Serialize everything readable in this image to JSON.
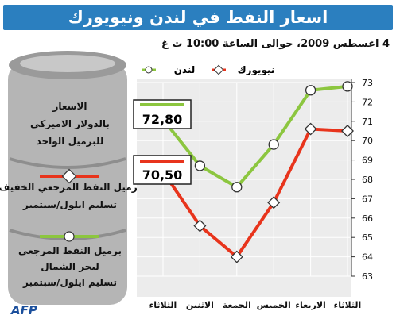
{
  "header": {
    "title": "اسعار النفط في لندن ونيويورك",
    "date_line": "4 اغسطس 2009، حوالى الساعة 10:00 ت غ"
  },
  "legend": {
    "london": "لندن",
    "newyork": "نيويورك"
  },
  "left_panel": {
    "intro": [
      "الاسعار",
      "بالدولار الاميركي",
      "للبرميل الواحد"
    ],
    "red_series_text": [
      "برميل النفط المرجعي الخفيف",
      "تسليم ايلول/سبتمبر"
    ],
    "green_series_text": [
      "برميل النفط المرجعي",
      "لبحر الشمال",
      "تسليم ايلول/سبتمبر"
    ]
  },
  "source": "AFP",
  "colors": {
    "title_bg": "#2b7fbf",
    "green": "#8cc63f",
    "red": "#e8341c",
    "barrel": "#b5b5b5",
    "barrel_dark": "#8e8e8e",
    "plot_bg": "#ececec",
    "label_box_border": "#222222"
  },
  "chart_data": {
    "type": "line",
    "categories": [
      "الثلاثاء",
      "الاثنين",
      "الجمعة",
      "الخميس",
      "الاربعاء",
      "الثلاثاء"
    ],
    "x_axis_direction": "right-to-left",
    "y_axis_position": "right",
    "ylim": [
      63,
      73
    ],
    "yticks": [
      63,
      64,
      65,
      66,
      67,
      68,
      69,
      70,
      71,
      72,
      73
    ],
    "grid": true,
    "series": [
      {
        "name": "لندن",
        "color": "#8cc63f",
        "values": [
          71.1,
          68.7,
          67.6,
          69.8,
          72.6,
          72.8
        ],
        "last_value_label": "72,80"
      },
      {
        "name": "نيويورك",
        "color": "#e8341c",
        "values": [
          68.4,
          65.6,
          64.0,
          66.8,
          70.6,
          70.5
        ],
        "last_value_label": "70,50"
      }
    ]
  }
}
